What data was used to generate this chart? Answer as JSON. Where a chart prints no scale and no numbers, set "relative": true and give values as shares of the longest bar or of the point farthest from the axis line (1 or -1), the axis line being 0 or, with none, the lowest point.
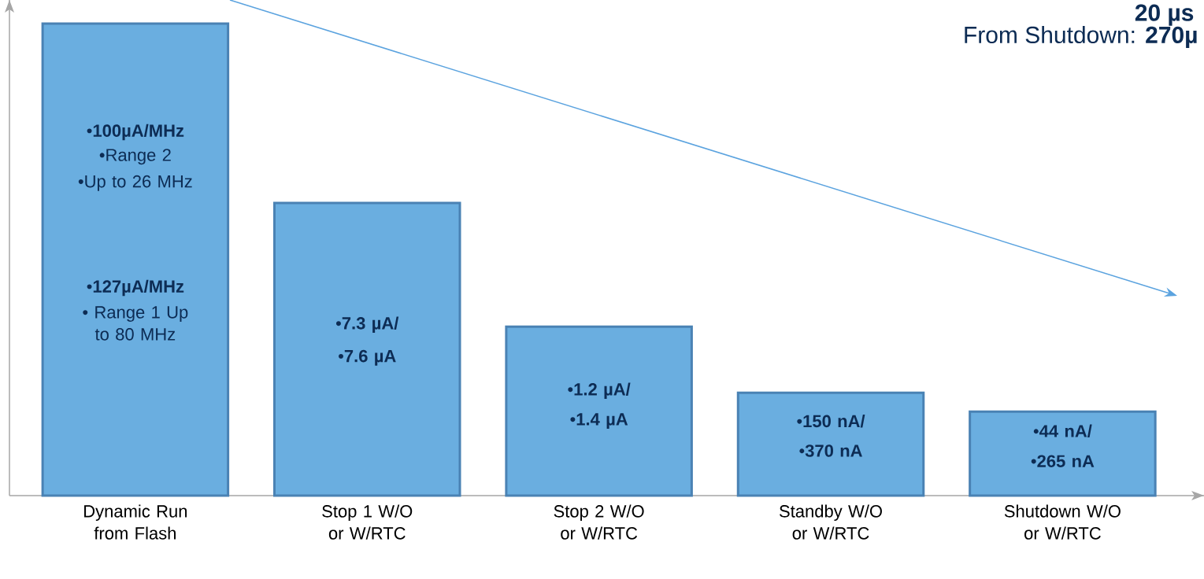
{
  "chart_data": {
    "type": "bar",
    "relative": true,
    "color": "#6aaee0",
    "categories": [
      "Dynamic Run from Flash",
      "Stop 1 W/O or W/RTC",
      "Stop 2 W/O or W/RTC",
      "Standby W/O or W/RTC",
      "Shutdown W/O or W/RTC"
    ],
    "values": [
      1,
      0.62,
      0.358,
      0.218,
      0.178
    ],
    "annotations": [
      "•**100µA/MHz**",
      "•Range 2",
      "•Up to 26 MHz",
      "•**127µA/MHz**",
      "• Range 1 Up to 80 MHz",
      "•**7.3 µA/**",
      "•**7.6 µA**",
      "•**1.2 µA/**",
      "•**1.4 µA**",
      "•**150 nA/**",
      "•**370 nA**",
      "•**44 nA/**",
      "•**265 nA**",
      "**20 µs**",
      "From Shutdown: **270µ**"
    ]
  }
}
